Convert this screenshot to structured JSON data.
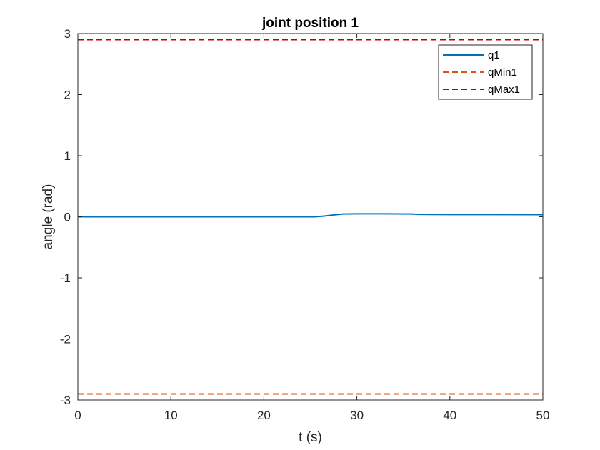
{
  "chart_data": {
    "type": "line",
    "title": "joint position 1",
    "xlabel": "t (s)",
    "ylabel": "angle (rad)",
    "xlim": [
      0,
      50
    ],
    "ylim": [
      -3,
      3
    ],
    "xticks": [
      0,
      10,
      20,
      30,
      40,
      50
    ],
    "yticks": [
      -3,
      -2,
      -1,
      0,
      1,
      2,
      3
    ],
    "grid": false,
    "legend_position": "top-right",
    "series": [
      {
        "name": "q1",
        "style": "solid",
        "color": "#0072BD",
        "x": [
          0,
          10,
          20,
          25.5,
          26.5,
          27.5,
          28.5,
          30,
          33,
          36,
          36.5,
          38,
          40,
          45,
          50
        ],
        "y": [
          0.0,
          0.0,
          0.0,
          0.0,
          0.012,
          0.03,
          0.045,
          0.048,
          0.048,
          0.046,
          0.04,
          0.038,
          0.037,
          0.036,
          0.035
        ]
      },
      {
        "name": "qMin1",
        "style": "dashed",
        "color": "#D95319",
        "x": [
          0,
          50
        ],
        "y": [
          -2.9,
          -2.9
        ]
      },
      {
        "name": "qMax1",
        "style": "dashed",
        "color": "#C00000",
        "x": [
          0,
          50
        ],
        "y": [
          2.9,
          2.9
        ]
      }
    ]
  }
}
